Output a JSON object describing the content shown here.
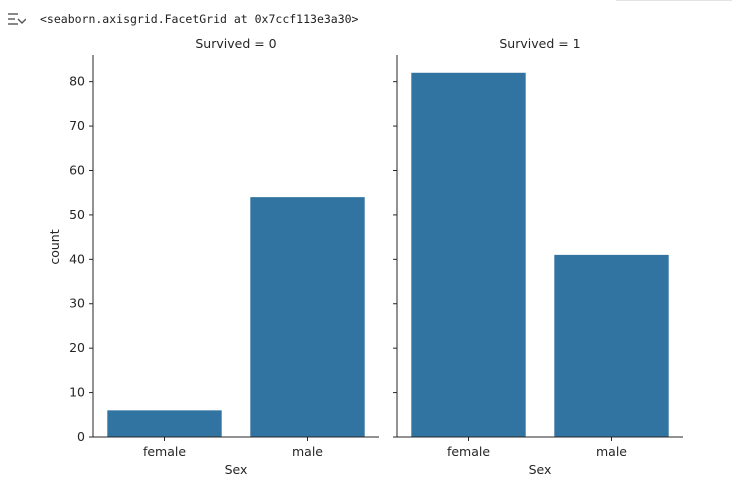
{
  "output": {
    "repr": "<seaborn.axisgrid.FacetGrid at 0x7ccf113e3a30>",
    "icon": "output-collapse-icon"
  },
  "chart_data": {
    "type": "bar",
    "ylabel": "count",
    "xlabel": "Sex",
    "ylim": [
      0,
      86
    ],
    "yticks": [
      0,
      10,
      20,
      30,
      40,
      50,
      60,
      70,
      80
    ],
    "bar_color": "#3274a1",
    "facets": [
      {
        "title": "Survived = 0",
        "categories": [
          "female",
          "male"
        ],
        "values": [
          6,
          54
        ]
      },
      {
        "title": "Survived = 1",
        "categories": [
          "female",
          "male"
        ],
        "values": [
          82,
          41
        ]
      }
    ]
  }
}
